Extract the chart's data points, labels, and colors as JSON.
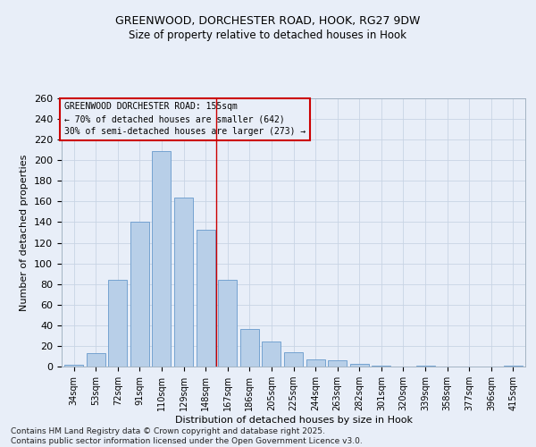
{
  "title_line1": "GREENWOOD, DORCHESTER ROAD, HOOK, RG27 9DW",
  "title_line2": "Size of property relative to detached houses in Hook",
  "xlabel": "Distribution of detached houses by size in Hook",
  "ylabel": "Number of detached properties",
  "bar_labels": [
    "34sqm",
    "53sqm",
    "72sqm",
    "91sqm",
    "110sqm",
    "129sqm",
    "148sqm",
    "167sqm",
    "186sqm",
    "205sqm",
    "225sqm",
    "244sqm",
    "263sqm",
    "282sqm",
    "301sqm",
    "320sqm",
    "339sqm",
    "358sqm",
    "377sqm",
    "396sqm",
    "415sqm"
  ],
  "bar_values": [
    2,
    13,
    84,
    140,
    209,
    164,
    133,
    84,
    36,
    24,
    14,
    7,
    6,
    3,
    1,
    0,
    1,
    0,
    0,
    0,
    1
  ],
  "bar_color": "#b8cfe8",
  "bar_edge_color": "#6699cc",
  "vline_color": "#cc0000",
  "annotation_text": "GREENWOOD DORCHESTER ROAD: 155sqm\n← 70% of detached houses are smaller (642)\n30% of semi-detached houses are larger (273) →",
  "annotation_box_edgecolor": "#cc0000",
  "annotation_fontsize": 7,
  "grid_color": "#c8d4e4",
  "background_color": "#e8eef8",
  "footer_text": "Contains HM Land Registry data © Crown copyright and database right 2025.\nContains public sector information licensed under the Open Government Licence v3.0.",
  "ylim": [
    0,
    260
  ],
  "yticks": [
    0,
    20,
    40,
    60,
    80,
    100,
    120,
    140,
    160,
    180,
    200,
    220,
    240,
    260
  ],
  "title1_fontsize": 9,
  "title2_fontsize": 8.5,
  "xlabel_fontsize": 8,
  "ylabel_fontsize": 8,
  "xtick_fontsize": 7,
  "ytick_fontsize": 8
}
